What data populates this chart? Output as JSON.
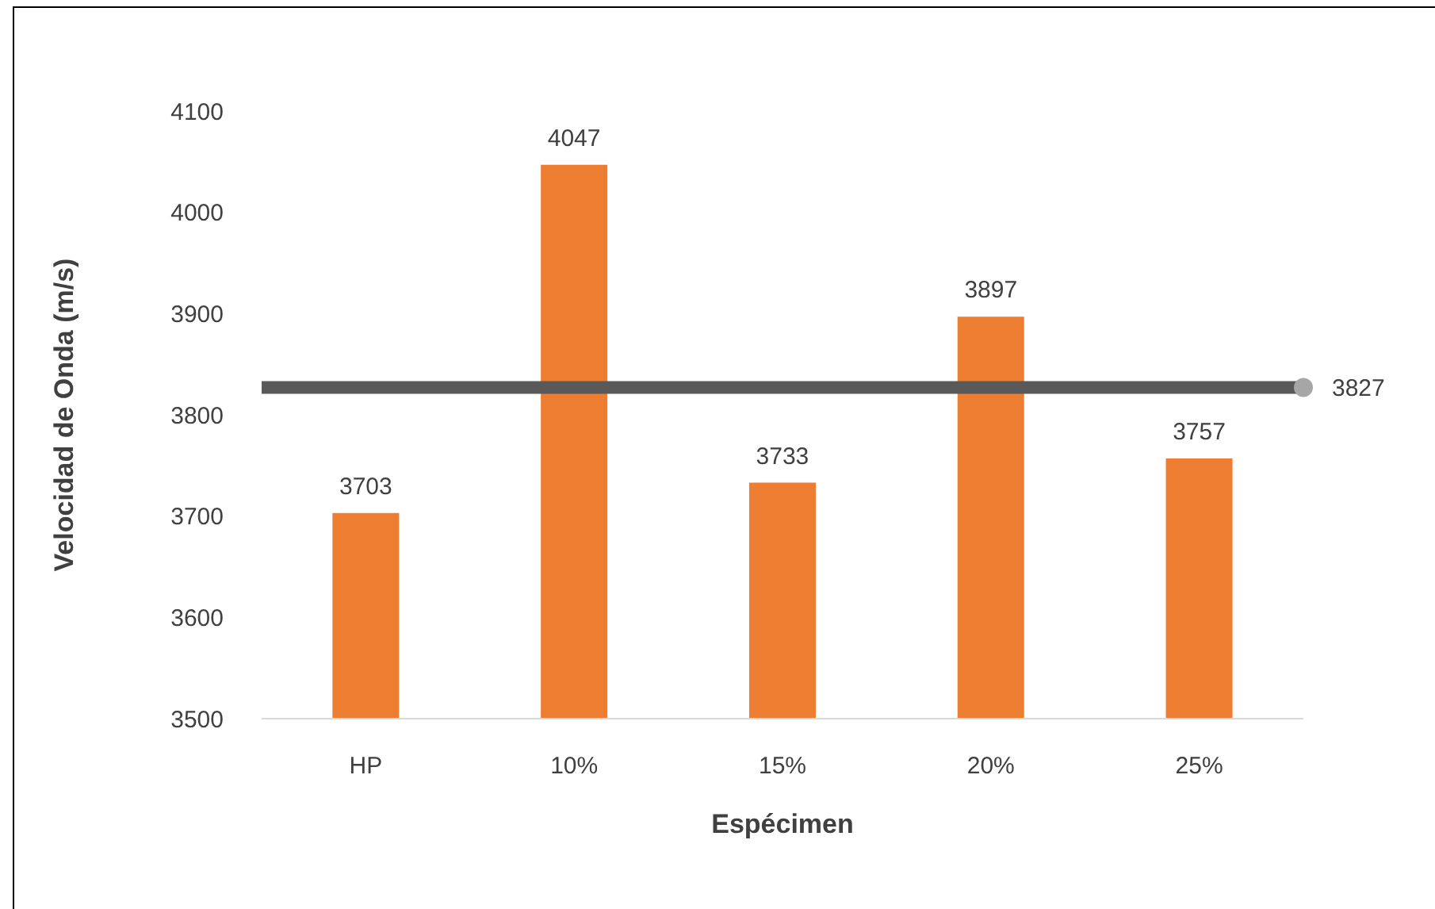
{
  "chart_data": {
    "type": "bar",
    "xlabel": "Espécimen",
    "ylabel": "Velocidad de Onda (m/s)",
    "categories": [
      "HP",
      "10%",
      "15%",
      "20%",
      "25%"
    ],
    "values": [
      3703,
      4047,
      3733,
      3897,
      3757
    ],
    "color": "#ed7d31",
    "ylim": [
      3500,
      4100
    ],
    "yticks": [
      3500,
      3600,
      3700,
      3800,
      3900,
      4000,
      4100
    ],
    "grid": false,
    "data_labels": true,
    "ref_lines": [
      {
        "axis": "y",
        "value": 3827,
        "label": "3827",
        "color": "#595959"
      }
    ]
  }
}
